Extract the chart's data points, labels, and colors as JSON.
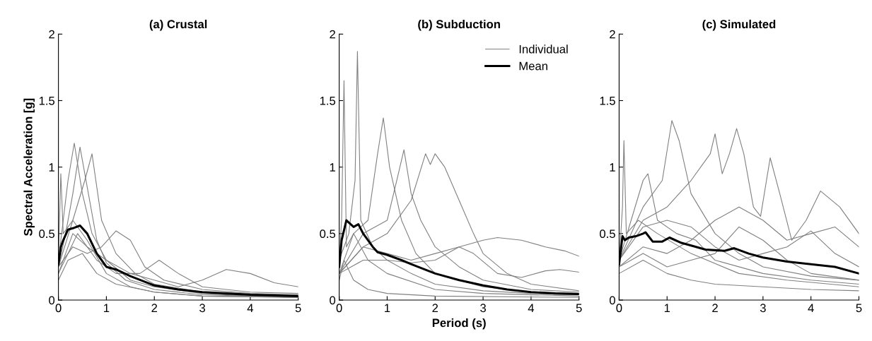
{
  "chart_data": [
    {
      "type": "line",
      "title": "(a) Crustal",
      "ylabel": "Spectral Acceleration [g]",
      "xlim": [
        0,
        5
      ],
      "xticks": [
        0,
        1,
        2,
        3,
        4,
        5
      ],
      "ylim": [
        0,
        2
      ],
      "yticks": [
        0,
        0.5,
        1,
        1.5,
        2
      ],
      "grid": false,
      "legend": false,
      "series": [
        {
          "color": "#808080",
          "x": [
            0,
            0.1,
            0.2,
            0.33,
            0.5,
            0.7,
            1,
            1.5,
            2,
            3,
            4,
            5
          ],
          "values": [
            0.3,
            0.6,
            0.9,
            1.18,
            0.8,
            0.5,
            0.3,
            0.15,
            0.1,
            0.05,
            0.03,
            0.02
          ]
        },
        {
          "color": "#808080",
          "x": [
            0,
            0.15,
            0.3,
            0.45,
            0.6,
            0.8,
            1,
            1.4,
            2,
            3,
            5
          ],
          "values": [
            0.25,
            0.5,
            0.8,
            1.15,
            0.85,
            0.45,
            0.28,
            0.15,
            0.08,
            0.04,
            0.02
          ]
        },
        {
          "color": "#808080",
          "x": [
            0,
            0.3,
            0.6,
            1,
            1.5,
            2,
            2.5,
            3,
            3.5,
            4,
            4.5,
            5
          ],
          "values": [
            0.2,
            0.5,
            0.4,
            0.3,
            0.2,
            0.15,
            0.1,
            0.15,
            0.23,
            0.2,
            0.13,
            0.1
          ]
        },
        {
          "color": "#808080",
          "x": [
            0,
            0.3,
            0.6,
            0.9,
            1.2,
            1.5,
            1.8,
            2.2,
            3,
            4,
            5
          ],
          "values": [
            0.25,
            0.4,
            0.35,
            0.4,
            0.52,
            0.45,
            0.25,
            0.15,
            0.08,
            0.05,
            0.04
          ]
        },
        {
          "color": "#808080",
          "x": [
            0,
            0.4,
            0.8,
            1.2,
            1.7,
            2.1,
            2.5,
            3,
            4,
            5
          ],
          "values": [
            0.2,
            0.5,
            0.3,
            0.2,
            0.2,
            0.3,
            0.2,
            0.1,
            0.06,
            0.05
          ]
        },
        {
          "color": "#808080",
          "x": [
            0,
            0.05,
            0.1,
            0.3,
            0.6,
            1,
            1.5,
            2,
            3,
            5
          ],
          "values": [
            0.3,
            0.95,
            0.5,
            0.6,
            0.45,
            0.2,
            0.1,
            0.06,
            0.03,
            0.02
          ]
        },
        {
          "color": "#808080",
          "x": [
            0,
            0.2,
            0.5,
            0.8,
            1.2,
            2,
            3,
            5
          ],
          "values": [
            0.15,
            0.3,
            0.35,
            0.2,
            0.12,
            0.06,
            0.03,
            0.02
          ]
        },
        {
          "color": "#808080",
          "x": [
            0,
            0.3,
            0.55,
            0.7,
            0.9,
            1.2,
            1.6,
            2,
            3,
            5
          ],
          "values": [
            0.25,
            0.6,
            0.9,
            1.1,
            0.6,
            0.35,
            0.2,
            0.12,
            0.06,
            0.03
          ]
        },
        {
          "color": "#000000",
          "x": [
            0,
            0.05,
            0.1,
            0.2,
            0.3,
            0.45,
            0.6,
            0.8,
            1,
            1.2,
            1.5,
            2,
            2.5,
            3,
            3.5,
            4,
            5
          ],
          "values": [
            0.27,
            0.4,
            0.45,
            0.53,
            0.54,
            0.56,
            0.5,
            0.35,
            0.25,
            0.23,
            0.18,
            0.11,
            0.08,
            0.06,
            0.05,
            0.04,
            0.03
          ]
        }
      ]
    },
    {
      "type": "line",
      "title": "(b) Subduction",
      "xlabel": "Period (s)",
      "xlim": [
        0,
        5
      ],
      "xticks": [
        0,
        1,
        2,
        3,
        4,
        5
      ],
      "ylim": [
        0,
        2
      ],
      "yticks": [
        0,
        0.5,
        1,
        1.5,
        2
      ],
      "grid": false,
      "legend": "top right",
      "series": [
        {
          "name": "Individual",
          "color": "#808080",
          "x": [
            0,
            0.2,
            0.33,
            0.38,
            0.45,
            0.7,
            1,
            1.5,
            2,
            3,
            4,
            5
          ],
          "values": [
            0.3,
            0.5,
            0.9,
            1.87,
            0.6,
            0.4,
            0.3,
            0.2,
            0.12,
            0.07,
            0.05,
            0.04
          ]
        },
        {
          "color": "#808080",
          "x": [
            0,
            0.05,
            0.1,
            0.15,
            0.3,
            0.6,
            1,
            2,
            3,
            5
          ],
          "values": [
            0.3,
            0.6,
            1.65,
            0.4,
            0.5,
            0.3,
            0.2,
            0.08,
            0.05,
            0.03
          ]
        },
        {
          "color": "#808080",
          "x": [
            0,
            0.3,
            0.6,
            0.8,
            0.92,
            1.05,
            1.3,
            1.6,
            2,
            3,
            4,
            5
          ],
          "values": [
            0.2,
            0.5,
            0.6,
            1.1,
            1.37,
            1.0,
            0.6,
            0.35,
            0.2,
            0.1,
            0.06,
            0.05
          ]
        },
        {
          "color": "#808080",
          "x": [
            0,
            0.5,
            1,
            1.5,
            1.8,
            1.9,
            2.0,
            2.2,
            2.5,
            2.8,
            3,
            3.5,
            4,
            5
          ],
          "values": [
            0.2,
            0.4,
            0.5,
            0.75,
            1.1,
            1.02,
            1.1,
            1.0,
            0.75,
            0.5,
            0.35,
            0.2,
            0.12,
            0.07
          ]
        },
        {
          "color": "#808080",
          "x": [
            0,
            0.5,
            1,
            1.2,
            1.35,
            1.5,
            1.7,
            2,
            2.5,
            3,
            4,
            5
          ],
          "values": [
            0.2,
            0.5,
            0.6,
            0.9,
            1.13,
            0.8,
            0.6,
            0.4,
            0.25,
            0.15,
            0.08,
            0.06
          ]
        },
        {
          "color": "#808080",
          "x": [
            0,
            0.5,
            1,
            1.5,
            2,
            2.5,
            3,
            3.3,
            3.8,
            4.3,
            4.7,
            5
          ],
          "values": [
            0.2,
            0.4,
            0.35,
            0.3,
            0.35,
            0.4,
            0.45,
            0.47,
            0.45,
            0.4,
            0.37,
            0.33
          ]
        },
        {
          "color": "#808080",
          "x": [
            0,
            0.5,
            1,
            1.5,
            2,
            2.5,
            2.8,
            3.3,
            3.8,
            4.3,
            4.6,
            5
          ],
          "values": [
            0.2,
            0.3,
            0.3,
            0.28,
            0.3,
            0.4,
            0.35,
            0.2,
            0.17,
            0.22,
            0.23,
            0.21
          ]
        },
        {
          "color": "#808080",
          "x": [
            0,
            0.1,
            0.3,
            0.6,
            1,
            2,
            5
          ],
          "values": [
            0.15,
            0.3,
            0.15,
            0.08,
            0.05,
            0.03,
            0.02
          ]
        },
        {
          "name": "Mean",
          "color": "#000000",
          "x": [
            0,
            0.05,
            0.15,
            0.3,
            0.4,
            0.5,
            0.7,
            0.8,
            1,
            1.3,
            1.5,
            2,
            2.5,
            3,
            3.5,
            4,
            4.5,
            5
          ],
          "values": [
            0.25,
            0.45,
            0.6,
            0.55,
            0.57,
            0.5,
            0.4,
            0.36,
            0.34,
            0.3,
            0.27,
            0.2,
            0.15,
            0.11,
            0.08,
            0.06,
            0.05,
            0.045
          ]
        }
      ]
    },
    {
      "type": "line",
      "title": "(c) Simulated",
      "xlim": [
        0,
        5
      ],
      "xticks": [
        0,
        1,
        2,
        3,
        4,
        5
      ],
      "ylim": [
        0,
        2
      ],
      "yticks": [
        0,
        0.5,
        1,
        1.5,
        2
      ],
      "grid": false,
      "legend": false,
      "series": [
        {
          "color": "#808080",
          "x": [
            0,
            0.07,
            0.1,
            0.15,
            0.4,
            0.8,
            1.5,
            2.5,
            3.5,
            5
          ],
          "values": [
            0.3,
            0.7,
            1.2,
            0.5,
            0.6,
            0.5,
            0.35,
            0.2,
            0.15,
            0.1
          ]
        },
        {
          "color": "#808080",
          "x": [
            0,
            0.5,
            0.9,
            1.1,
            1.25,
            1.5,
            2,
            2.5,
            3,
            4,
            5
          ],
          "values": [
            0.3,
            0.7,
            0.9,
            1.35,
            1.2,
            0.8,
            0.5,
            0.35,
            0.25,
            0.18,
            0.15
          ]
        },
        {
          "color": "#808080",
          "x": [
            0,
            0.5,
            1,
            1.5,
            1.9,
            2.0,
            2.15,
            2.3,
            2.45,
            2.6,
            2.8,
            2.95,
            3.15,
            3.35,
            3.6,
            3.9,
            4.2,
            4.6,
            5
          ],
          "values": [
            0.3,
            0.6,
            0.7,
            0.9,
            1.1,
            1.25,
            0.95,
            1.1,
            1.29,
            1.1,
            0.7,
            0.63,
            1.07,
            0.8,
            0.45,
            0.6,
            0.82,
            0.7,
            0.5
          ]
        },
        {
          "color": "#808080",
          "x": [
            0,
            0.5,
            1,
            1.5,
            2,
            2.5,
            3,
            3.5,
            4,
            4.5,
            5
          ],
          "values": [
            0.25,
            0.4,
            0.35,
            0.45,
            0.6,
            0.7,
            0.6,
            0.45,
            0.5,
            0.55,
            0.4
          ]
        },
        {
          "color": "#808080",
          "x": [
            0,
            0.5,
            1,
            1.5,
            2,
            3,
            4,
            5
          ],
          "values": [
            0.2,
            0.3,
            0.2,
            0.15,
            0.12,
            0.1,
            0.08,
            0.07
          ]
        },
        {
          "color": "#808080",
          "x": [
            0,
            0.5,
            1,
            1.5,
            2,
            2.5,
            3,
            3.5,
            4,
            4.5,
            5
          ],
          "values": [
            0.3,
            0.55,
            0.6,
            0.55,
            0.4,
            0.3,
            0.35,
            0.4,
            0.52,
            0.35,
            0.25
          ]
        },
        {
          "color": "#808080",
          "x": [
            0,
            0.5,
            1,
            1.5,
            2,
            2.5,
            3,
            3.5,
            4,
            5
          ],
          "values": [
            0.25,
            0.35,
            0.25,
            0.3,
            0.35,
            0.55,
            0.45,
            0.3,
            0.2,
            0.15
          ]
        },
        {
          "color": "#808080",
          "x": [
            0,
            0.5,
            0.6,
            0.8,
            1.2,
            1.6,
            2,
            3,
            4,
            5
          ],
          "values": [
            0.3,
            0.9,
            0.95,
            0.6,
            0.5,
            0.45,
            0.3,
            0.2,
            0.15,
            0.12
          ]
        },
        {
          "color": "#000000",
          "x": [
            0,
            0.07,
            0.12,
            0.2,
            0.35,
            0.5,
            0.55,
            0.7,
            0.9,
            1.05,
            1.3,
            1.5,
            1.8,
            2.2,
            2.4,
            2.7,
            3,
            3.5,
            4,
            4.5,
            5
          ],
          "values": [
            0.27,
            0.48,
            0.45,
            0.47,
            0.48,
            0.5,
            0.51,
            0.44,
            0.44,
            0.47,
            0.43,
            0.41,
            0.38,
            0.37,
            0.39,
            0.35,
            0.32,
            0.29,
            0.27,
            0.25,
            0.2
          ]
        }
      ]
    }
  ]
}
